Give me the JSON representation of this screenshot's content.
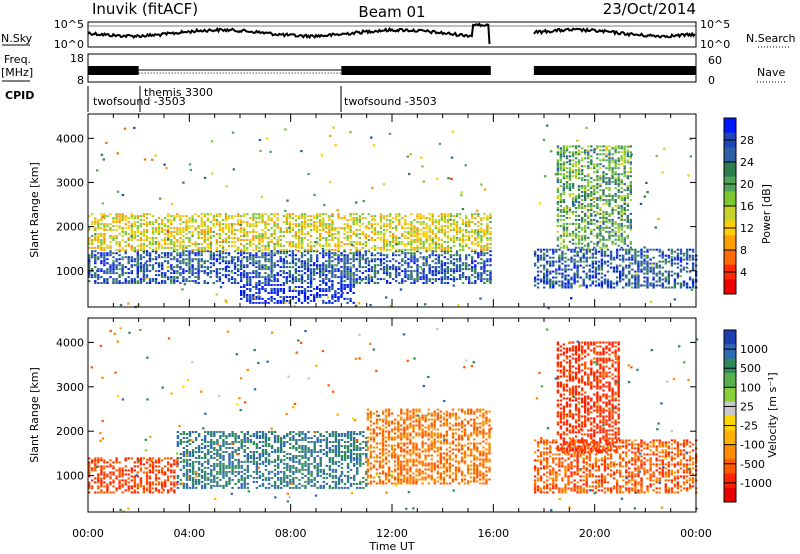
{
  "header": {
    "station": "Inuvik (fitACF)",
    "beam": "Beam 01",
    "date": "23/Oct/2014"
  },
  "summary": {
    "nsky_label": "N.Sky",
    "nsky_ticks": [
      "10^5",
      "10^0"
    ],
    "nsearch_label": "N.Search",
    "nsearch_ticks": [
      "10^5",
      "10^0"
    ],
    "freq_label_1": "Freq.",
    "freq_label_2": "[MHz]",
    "freq_ticks": [
      "18",
      "8"
    ],
    "nave_label": "Nave",
    "nave_ticks": [
      "60",
      "0"
    ],
    "cpid_label": "CPID",
    "cpid_entries": [
      {
        "name": "twofsound -3503",
        "start": "00:00"
      },
      {
        "name": "themis 3300",
        "start": "02:00"
      },
      {
        "name": "twofsound -3503",
        "start": "10:00"
      }
    ]
  },
  "x_axis": {
    "label": "Time UT",
    "ticks": [
      "00:00",
      "04:00",
      "08:00",
      "12:00",
      "16:00",
      "20:00",
      "00:00"
    ]
  },
  "chart_data": [
    {
      "type": "heatmap",
      "name": "power-panel",
      "ylabel": "Slant Range [km]",
      "xlim_hours": [
        0,
        24
      ],
      "ylim_km": [
        180,
        4550
      ],
      "yticks": [
        "4000",
        "3000",
        "2000",
        "1000"
      ],
      "colorbar_label": "Power [dB]",
      "colorbar_ticks": [
        "28",
        "24",
        "20",
        "16",
        "12",
        "8",
        "4"
      ],
      "colorbar_colors": [
        "#0018ff",
        "#1f47b8",
        "#2f5fa5",
        "#2e7d4f",
        "#52a35a",
        "#7cc832",
        "#c8d22a",
        "#ffd000",
        "#ff9f00",
        "#ff6a00",
        "#ff2a00",
        "#ee0000"
      ],
      "data_gaps_hours": [
        [
          15.9,
          17.6
        ]
      ],
      "echo_bands": [
        {
          "t0": 0.0,
          "t1": 15.9,
          "range_km": [
            700,
            1450
          ],
          "level_db": 24
        },
        {
          "t0": 0.0,
          "t1": 15.9,
          "range_km": [
            1450,
            2300
          ],
          "level_db": 12
        },
        {
          "t0": 6.0,
          "t1": 10.5,
          "range_km": [
            250,
            700
          ],
          "level_db": 28
        },
        {
          "t0": 17.6,
          "t1": 24.0,
          "range_km": [
            600,
            1500
          ],
          "level_db": 24
        },
        {
          "t0": 18.5,
          "t1": 21.5,
          "range_km": [
            1500,
            3800
          ],
          "level_db": 18
        }
      ]
    },
    {
      "type": "heatmap",
      "name": "velocity-panel",
      "ylabel": "Slant Range [km]",
      "xlim_hours": [
        0,
        24
      ],
      "ylim_km": [
        180,
        4550
      ],
      "yticks": [
        "4000",
        "3000",
        "2000",
        "1000"
      ],
      "colorbar_label": "Velocity [m s⁻¹]",
      "colorbar_ticks": [
        "1000",
        "500",
        "100",
        "25",
        "-25",
        "-100",
        "-500",
        "-1000"
      ],
      "colorbar_colors": [
        "#1f3fae",
        "#2e6ab0",
        "#2e8a5a",
        "#57b04a",
        "#8bcf3a",
        "#c8c8c8",
        "#ffd800",
        "#ffb000",
        "#ff8c00",
        "#ff5a00",
        "#ff2400",
        "#e80000"
      ],
      "data_gaps_hours": [
        [
          15.9,
          17.6
        ]
      ],
      "echo_bands": [
        {
          "t0": 0.0,
          "t1": 3.5,
          "range_km": [
            600,
            1400
          ],
          "level_ms": -500
        },
        {
          "t0": 3.5,
          "t1": 11.0,
          "range_km": [
            700,
            2000
          ],
          "level_ms": 300
        },
        {
          "t0": 11.0,
          "t1": 15.9,
          "range_km": [
            800,
            2500
          ],
          "level_ms": -300
        },
        {
          "t0": 17.6,
          "t1": 24.0,
          "range_km": [
            600,
            1800
          ],
          "level_ms": -400
        },
        {
          "t0": 18.5,
          "t1": 21.0,
          "range_km": [
            1500,
            4000
          ],
          "level_ms": -600
        }
      ]
    }
  ]
}
